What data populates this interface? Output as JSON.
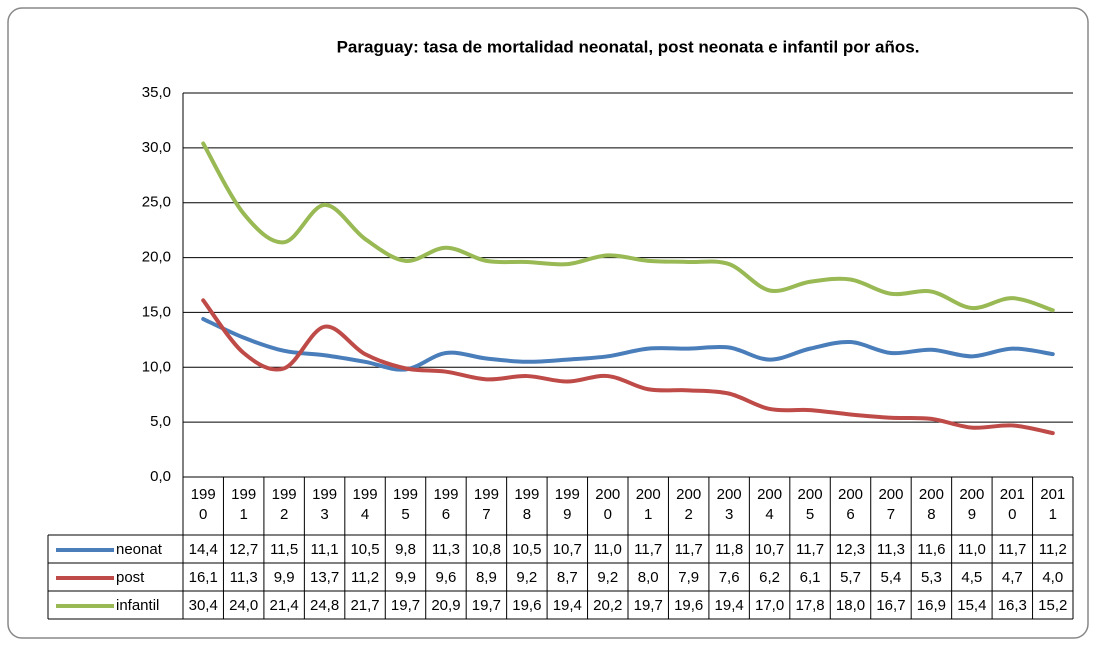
{
  "chart_data": {
    "type": "line",
    "title": "Paraguay: tasa de mortalidad neonatal, post neonata e infantil por años.",
    "categories": [
      "1990",
      "1991",
      "1992",
      "1993",
      "1994",
      "1995",
      "1996",
      "1997",
      "1998",
      "1999",
      "2000",
      "2001",
      "2002",
      "2003",
      "2004",
      "2005",
      "2006",
      "2007",
      "2008",
      "2009",
      "2010",
      "2011"
    ],
    "series": [
      {
        "name": "neonat",
        "color": "#4a7ebb",
        "values": [
          14.4,
          12.7,
          11.5,
          11.1,
          10.5,
          9.8,
          11.3,
          10.8,
          10.5,
          10.7,
          11.0,
          11.7,
          11.7,
          11.8,
          10.7,
          11.7,
          12.3,
          11.3,
          11.6,
          11.0,
          11.7,
          11.2
        ],
        "value_labels": [
          "14,4",
          "12,7",
          "11,5",
          "11,1",
          "10,5",
          "9,8",
          "11,3",
          "10,8",
          "10,5",
          "10,7",
          "11,0",
          "11,7",
          "11,7",
          "11,8",
          "10,7",
          "11,7",
          "12,3",
          "11,3",
          "11,6",
          "11,0",
          "11,7",
          "11,2"
        ]
      },
      {
        "name": "post",
        "color": "#be4b48",
        "values": [
          16.1,
          11.3,
          9.9,
          13.7,
          11.2,
          9.9,
          9.6,
          8.9,
          9.2,
          8.7,
          9.2,
          8.0,
          7.9,
          7.6,
          6.2,
          6.1,
          5.7,
          5.4,
          5.3,
          4.5,
          4.7,
          4.0
        ],
        "value_labels": [
          "16,1",
          "11,3",
          "9,9",
          "13,7",
          "11,2",
          "9,9",
          "9,6",
          "8,9",
          "9,2",
          "8,7",
          "9,2",
          "8,0",
          "7,9",
          "7,6",
          "6,2",
          "6,1",
          "5,7",
          "5,4",
          "5,3",
          "4,5",
          "4,7",
          "4,0"
        ]
      },
      {
        "name": "infantil",
        "color": "#98b954",
        "values": [
          30.4,
          24.0,
          21.4,
          24.8,
          21.7,
          19.7,
          20.9,
          19.7,
          19.6,
          19.4,
          20.2,
          19.7,
          19.6,
          19.4,
          17.0,
          17.8,
          18.0,
          16.7,
          16.9,
          15.4,
          16.3,
          15.2
        ],
        "value_labels": [
          "30,4",
          "24,0",
          "21,4",
          "24,8",
          "21,7",
          "19,7",
          "20,9",
          "19,7",
          "19,6",
          "19,4",
          "20,2",
          "19,7",
          "19,6",
          "19,4",
          "17,0",
          "17,8",
          "18,0",
          "16,7",
          "16,9",
          "15,4",
          "16,3",
          "15,2"
        ]
      }
    ],
    "ylim": [
      0,
      35
    ],
    "yticks": [
      {
        "value": 0,
        "label": "0,0"
      },
      {
        "value": 5,
        "label": "5,0"
      },
      {
        "value": 10,
        "label": "10,0"
      },
      {
        "value": 15,
        "label": "15,0"
      },
      {
        "value": 20,
        "label": "20,0"
      },
      {
        "value": 25,
        "label": "25,0"
      },
      {
        "value": 30,
        "label": "30,0"
      },
      {
        "value": 35,
        "label": "35,0"
      }
    ],
    "grid": true
  }
}
